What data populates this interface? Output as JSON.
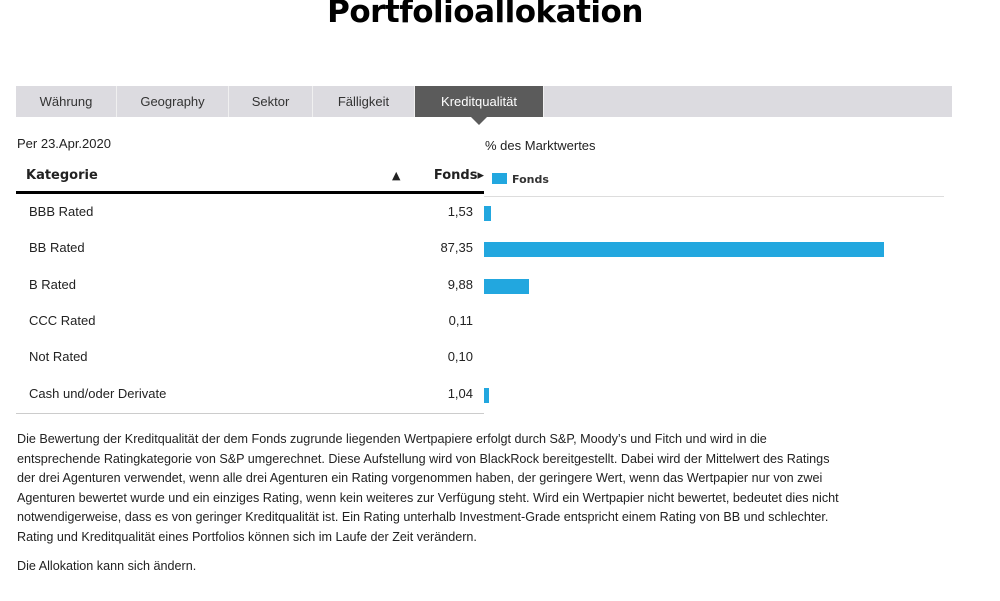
{
  "title": "Portfolioallokation",
  "tabs": [
    {
      "label": "Währung"
    },
    {
      "label": "Geography"
    },
    {
      "label": "Sektor"
    },
    {
      "label": "Fälligkeit"
    },
    {
      "label": "Kreditqualität",
      "active": true
    }
  ],
  "as_of": "Per 23.Apr.2020",
  "table": {
    "col_category": "Kategorie",
    "sort_icon": "triangle-up",
    "col_fonds": "Fonds▸"
  },
  "chart_data": {
    "type": "bar",
    "orientation": "horizontal",
    "title": "% des Marktwertes",
    "legend": "top-left",
    "series": [
      {
        "name": "Fonds",
        "color": "#22a7df",
        "values": [
          1.53,
          87.35,
          9.88,
          0.11,
          0.1,
          1.04
        ]
      }
    ],
    "categories": [
      "BBB Rated",
      "BB Rated",
      "B Rated",
      "CCC Rated",
      "Not Rated",
      "Cash und/oder Derivate"
    ],
    "value_labels": [
      "1,53",
      "87,35",
      "9,88",
      "0,11",
      "0,10",
      "1,04"
    ],
    "xlim": [
      0,
      100
    ],
    "grid": false
  },
  "paragraph_lines": [
    "Die Bewertung der Kreditqualität der dem Fonds zugrunde liegenden Wertpapiere erfolgt durch S&P, Moody’s und Fitch und wird in die",
    "entsprechende Ratingkategorie von S&P umgerechnet. Diese Aufstellung wird von BlackRock bereitgestellt. Dabei wird der Mittelwert des Ratings",
    "der drei Agenturen verwendet, wenn alle drei Agenturen ein Rating vorgenommen haben, der geringere Wert, wenn das Wertpapier nur von zwei",
    "Agenturen bewertet wurde und ein einziges Rating, wenn kein weiteres zur Verfügung steht. Wird ein Wertpapier nicht bewertet, bedeutet dies nicht",
    "notwendigerweise, dass es von geringer Kreditqualität ist. Ein Rating unterhalb Investment-Grade entspricht einem Rating von BB und schlechter.",
    "Rating und Kreditqualität eines Portfolios können sich im Laufe der Zeit verändern."
  ],
  "note": "Die Allokation kann sich ändern."
}
